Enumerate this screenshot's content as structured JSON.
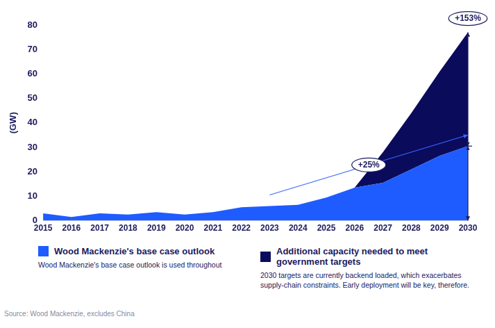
{
  "chart_data": {
    "type": "area",
    "categories": [
      "2015",
      "2016",
      "2017",
      "2018",
      "2019",
      "2020",
      "2021",
      "2022",
      "2023",
      "2024",
      "2025",
      "2026",
      "2027",
      "2028",
      "2029",
      "2030"
    ],
    "series": [
      {
        "name": "Wood Mackenzie's base case outlook",
        "color": "#1f5cff",
        "values": [
          3,
          1.5,
          3,
          2.5,
          3.5,
          2.5,
          3.5,
          5.5,
          6,
          6.5,
          9.5,
          13.5,
          15.5,
          21,
          26.5,
          30.5
        ],
        "note": "Wood Mackenzie's base case outlook is used throughout"
      },
      {
        "name": "Additional capacity needed to meet government targets",
        "color": "#0b0b5c",
        "values": [
          null,
          null,
          null,
          null,
          null,
          null,
          null,
          null,
          null,
          null,
          null,
          0,
          12.5,
          23,
          34.5,
          46.5
        ],
        "note": "2030 targets are currently backend loaded, which exacerbates supply-chain constraints. Early deployment will be key, therefore."
      }
    ],
    "y_label": "(GW)",
    "ylim": [
      0,
      80
    ],
    "yticks": [
      0,
      10,
      20,
      30,
      40,
      50,
      60,
      70,
      80
    ],
    "stacked": true,
    "grid": false,
    "legend": "bottom",
    "annotations": [
      "+153%",
      "+25%"
    ],
    "source": "Source: Wood Mackenzie, excludes China"
  }
}
